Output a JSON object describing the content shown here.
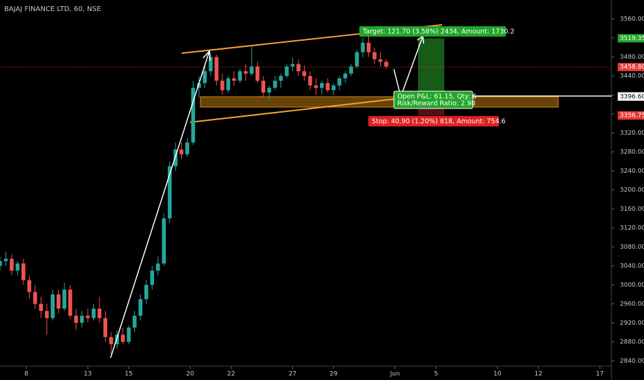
{
  "chart_data": {
    "type": "candlestick",
    "title": "BAJAJ FINANCE LTD, 60, NSE",
    "annotations": {
      "target": "Target: 121.70 (3.58%) 2434, Amount: 1730.2",
      "open_pnl": "Open P&L: 61.15, Qty: 6",
      "risk_reward": "Risk/Reward Ratio: 2.98",
      "stop": "Stop: 40.90 (1.20%) 818, Amount: 754.6"
    },
    "xlim": [
      0,
      209
    ],
    "xticks": [
      {
        "value": 9,
        "label": "8"
      },
      {
        "value": 30,
        "label": "13"
      },
      {
        "value": 44,
        "label": "15"
      },
      {
        "value": 65,
        "label": "20"
      },
      {
        "value": 79,
        "label": "22"
      },
      {
        "value": 100,
        "label": "27"
      },
      {
        "value": 114,
        "label": "29"
      },
      {
        "value": 135,
        "label": "Jun"
      },
      {
        "value": 149,
        "label": "5"
      },
      {
        "value": 170,
        "label": "10"
      },
      {
        "value": 184,
        "label": "12"
      },
      {
        "value": 205,
        "label": "17"
      }
    ],
    "ylim": [
      2820,
      3600
    ],
    "yticks": [
      {
        "value": 2840,
        "label": "2840.00"
      },
      {
        "value": 2880,
        "label": "2880.00"
      },
      {
        "value": 2920,
        "label": "2920.00"
      },
      {
        "value": 2960,
        "label": "2960.00"
      },
      {
        "value": 3000,
        "label": "3000.00"
      },
      {
        "value": 3040,
        "label": "3040.00"
      },
      {
        "value": 3080,
        "label": "3080.00"
      },
      {
        "value": 3120,
        "label": "3120.00"
      },
      {
        "value": 3160,
        "label": "3160.00"
      },
      {
        "value": 3200,
        "label": "3200.00"
      },
      {
        "value": 3240,
        "label": "3240.00"
      },
      {
        "value": 3280,
        "label": "3280.00"
      },
      {
        "value": 3320,
        "label": "3320.00"
      },
      {
        "value": 3360,
        "label": "3360.00"
      },
      {
        "value": 3400,
        "label": "3400.00"
      },
      {
        "value": 3440,
        "label": "3440.00"
      },
      {
        "value": 3480,
        "label": "3480.00"
      },
      {
        "value": 3520,
        "label": "3520.00"
      },
      {
        "value": 3560,
        "label": "3560.00"
      }
    ],
    "price_labels": [
      {
        "value": 3519.35,
        "color": "#26a62c"
      },
      {
        "value": 3458.8,
        "label": "3458.80",
        "color": "#e53935"
      },
      {
        "value": 3397.65,
        "color": "#555555"
      },
      {
        "value": 3396.6,
        "label": "3396.60",
        "color": "#ffffff"
      },
      {
        "value": 3356.75,
        "color": "#e53935"
      }
    ],
    "up_color": "#26a69a",
    "down_color": "#ef5350",
    "x": [
      0,
      2,
      4,
      6,
      8,
      10,
      12,
      14,
      16,
      18,
      20,
      22,
      24,
      26,
      28,
      30,
      32,
      34,
      36,
      38,
      40,
      42,
      44,
      46,
      48,
      50,
      52,
      54,
      56,
      58,
      60,
      62,
      64,
      66,
      68,
      70,
      72,
      74,
      76,
      78,
      80,
      82,
      84,
      86,
      88,
      90,
      92,
      94,
      96,
      98,
      100,
      102,
      104,
      106,
      108,
      110,
      112,
      114,
      116,
      118,
      120,
      122,
      124,
      126,
      128,
      130,
      132
    ],
    "open": [
      3040,
      3050,
      3055,
      3030,
      3045,
      3010,
      2985,
      2960,
      2945,
      2930,
      2980,
      2950,
      2990,
      2935,
      2920,
      2935,
      2930,
      2950,
      2930,
      2890,
      2875,
      2895,
      2880,
      2910,
      2935,
      2970,
      3000,
      3030,
      3045,
      3140,
      3250,
      3285,
      3275,
      3300,
      3415,
      3425,
      3450,
      3480,
      3430,
      3410,
      3435,
      3430,
      3450,
      3445,
      3460,
      3430,
      3405,
      3415,
      3430,
      3440,
      3460,
      3465,
      3450,
      3440,
      3420,
      3415,
      3425,
      3410,
      3420,
      3435,
      3445,
      3460,
      3490,
      3510,
      3490,
      3475,
      3470
    ],
    "high": [
      3060,
      3070,
      3065,
      3050,
      3055,
      3020,
      3000,
      2975,
      2960,
      2990,
      2990,
      3005,
      3000,
      2950,
      2945,
      2950,
      2960,
      2975,
      2945,
      2900,
      2905,
      2910,
      2915,
      2945,
      2980,
      3010,
      3040,
      3060,
      3150,
      3260,
      3300,
      3300,
      3310,
      3430,
      3440,
      3460,
      3490,
      3485,
      3445,
      3440,
      3450,
      3455,
      3465,
      3505,
      3470,
      3440,
      3420,
      3440,
      3445,
      3465,
      3478,
      3475,
      3462,
      3450,
      3435,
      3430,
      3435,
      3425,
      3440,
      3450,
      3465,
      3495,
      3520,
      3525,
      3500,
      3490,
      3475
    ],
    "low": [
      3030,
      3040,
      3020,
      3020,
      3000,
      2970,
      2950,
      2930,
      2895,
      2925,
      2940,
      2945,
      2930,
      2905,
      2910,
      2920,
      2925,
      2920,
      2880,
      2855,
      2865,
      2875,
      2875,
      2900,
      2925,
      2960,
      2990,
      3020,
      3040,
      3130,
      3240,
      3265,
      3270,
      3295,
      3395,
      3415,
      3440,
      3420,
      3400,
      3405,
      3420,
      3425,
      3430,
      3440,
      3425,
      3395,
      3388,
      3410,
      3415,
      3435,
      3450,
      3440,
      3430,
      3410,
      3400,
      3400,
      3405,
      3400,
      3410,
      3425,
      3440,
      3455,
      3480,
      3480,
      3465,
      3460,
      3455
    ],
    "close": [
      3050,
      3055,
      3030,
      3045,
      3010,
      2985,
      2960,
      2945,
      2930,
      2980,
      2950,
      2990,
      2935,
      2920,
      2935,
      2930,
      2950,
      2930,
      2890,
      2875,
      2895,
      2880,
      2910,
      2935,
      2970,
      3000,
      3030,
      3045,
      3140,
      3250,
      3285,
      3275,
      3300,
      3415,
      3425,
      3450,
      3480,
      3430,
      3410,
      3435,
      3430,
      3450,
      3445,
      3460,
      3430,
      3405,
      3415,
      3430,
      3440,
      3460,
      3465,
      3450,
      3440,
      3420,
      3415,
      3425,
      3410,
      3420,
      3435,
      3445,
      3460,
      3490,
      3510,
      3490,
      3475,
      3470,
      3460
    ]
  }
}
